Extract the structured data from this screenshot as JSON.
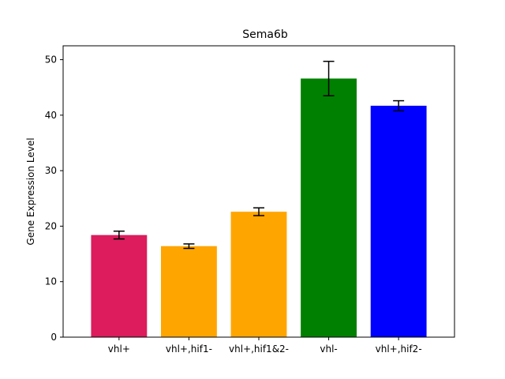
{
  "chart_data": {
    "type": "bar",
    "title": "Sema6b",
    "xlabel": "",
    "ylabel": "Gene Expression Level",
    "categories": [
      "vhl+",
      "vhl+,hif1-",
      "vhl+,hif1&2-",
      "vhl-",
      "vhl+,hif2-"
    ],
    "values": [
      18.4,
      16.4,
      22.6,
      46.6,
      41.7
    ],
    "errors": [
      0.7,
      0.4,
      0.7,
      3.1,
      0.9
    ],
    "colors": [
      "#DC1C5C",
      "#FFA500",
      "#FFA500",
      "#008000",
      "#0000FF"
    ],
    "ylim": [
      0,
      52.5
    ],
    "yticks": [
      0,
      10,
      20,
      30,
      40,
      50
    ],
    "grid": false
  }
}
